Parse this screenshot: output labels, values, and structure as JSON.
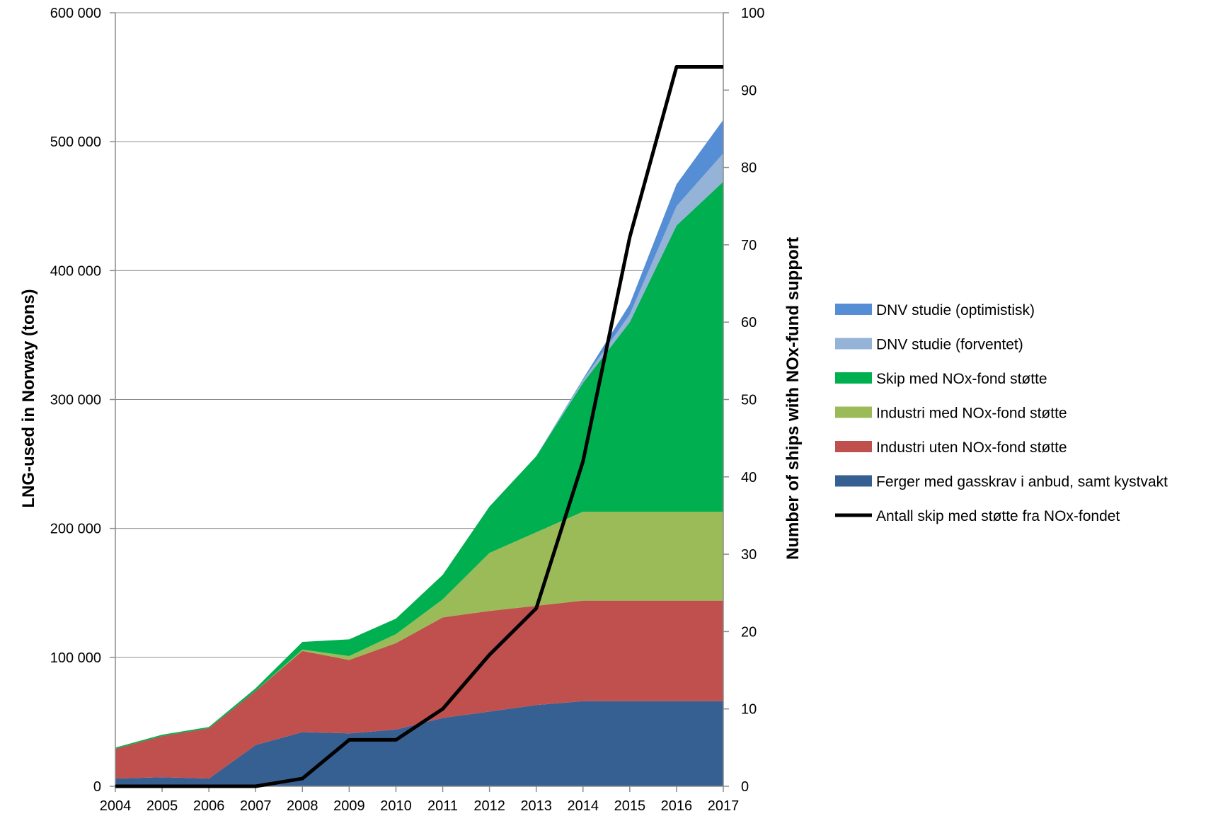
{
  "chart_data": {
    "type": "area",
    "x": [
      2004,
      2005,
      2006,
      2007,
      2008,
      2009,
      2010,
      2011,
      2012,
      2013,
      2014,
      2015,
      2016,
      2017
    ],
    "x_tick_labels": [
      "2004",
      "2005",
      "2006",
      "2007",
      "2008",
      "2009",
      "2010",
      "2011",
      "2012",
      "2013",
      "2014",
      "2015",
      "2016",
      "2017"
    ],
    "ylabel": "LNG-used in Norway (tons)",
    "ylim": [
      0,
      600000
    ],
    "y_ticks": [
      0,
      100000,
      200000,
      300000,
      400000,
      500000,
      600000
    ],
    "y_tick_labels": [
      "0",
      "100 000",
      "200 000",
      "300 000",
      "400 000",
      "500 000",
      "600 000"
    ],
    "y2label": "Number of ships with NOx-fund support",
    "y2lim": [
      0,
      100
    ],
    "y2_ticks": [
      0,
      10,
      20,
      30,
      40,
      50,
      60,
      70,
      80,
      90,
      100
    ],
    "y2_tick_labels": [
      "0",
      "10",
      "20",
      "30",
      "40",
      "50",
      "60",
      "70",
      "80",
      "90",
      "100"
    ],
    "grid": true,
    "legend_position": "right",
    "stacked": true,
    "series": [
      {
        "name": "Ferger med gasskrav i anbud, samt kystvakt",
        "color": "#376092",
        "values": [
          6000,
          7000,
          6000,
          32000,
          42000,
          41000,
          44000,
          53000,
          58000,
          63000,
          66000,
          66000,
          66000,
          66000
        ]
      },
      {
        "name": "Industri uten NOx-fond støtte",
        "color": "#C0504D",
        "values": [
          23000,
          32000,
          39000,
          42000,
          63000,
          57000,
          67000,
          78000,
          78000,
          77000,
          78000,
          78000,
          78000,
          78000
        ]
      },
      {
        "name": "Industri med NOx-fond støtte",
        "color": "#9BBB59",
        "values": [
          0,
          0,
          0,
          0,
          1000,
          3000,
          7000,
          14000,
          45000,
          57000,
          69000,
          69000,
          69000,
          69000
        ]
      },
      {
        "name": "Skip med NOx-fond støtte",
        "color": "#00B050",
        "values": [
          1000,
          1000,
          1000,
          2000,
          6000,
          13000,
          12000,
          19000,
          36000,
          59000,
          100000,
          147000,
          222000,
          256000
        ]
      },
      {
        "name": "DNV studie (forventet)",
        "color": "#95B3D7",
        "values": [
          0,
          0,
          0,
          0,
          0,
          0,
          0,
          0,
          0,
          0,
          2000,
          6000,
          15000,
          22000
        ]
      },
      {
        "name": "DNV studie (optimistisk)",
        "color": "#558ED5",
        "values": [
          0,
          0,
          0,
          0,
          0,
          0,
          0,
          0,
          0,
          0,
          1000,
          8000,
          17000,
          26000
        ]
      }
    ],
    "line_series": {
      "name": "Antall skip med støtte fra NOx-fondet",
      "color": "#000000",
      "axis": "right",
      "values": [
        0,
        0,
        0,
        0,
        1,
        6,
        6,
        10,
        17,
        23,
        42,
        71,
        93,
        93
      ]
    },
    "legend_order": [
      "DNV studie (optimistisk)",
      "DNV studie (forventet)",
      "Skip med NOx-fond støtte",
      "Industri med NOx-fond støtte",
      "Industri uten NOx-fond støtte",
      "Ferger med gasskrav i anbud, samt kystvakt",
      "Antall skip med støtte fra NOx-fondet"
    ]
  }
}
